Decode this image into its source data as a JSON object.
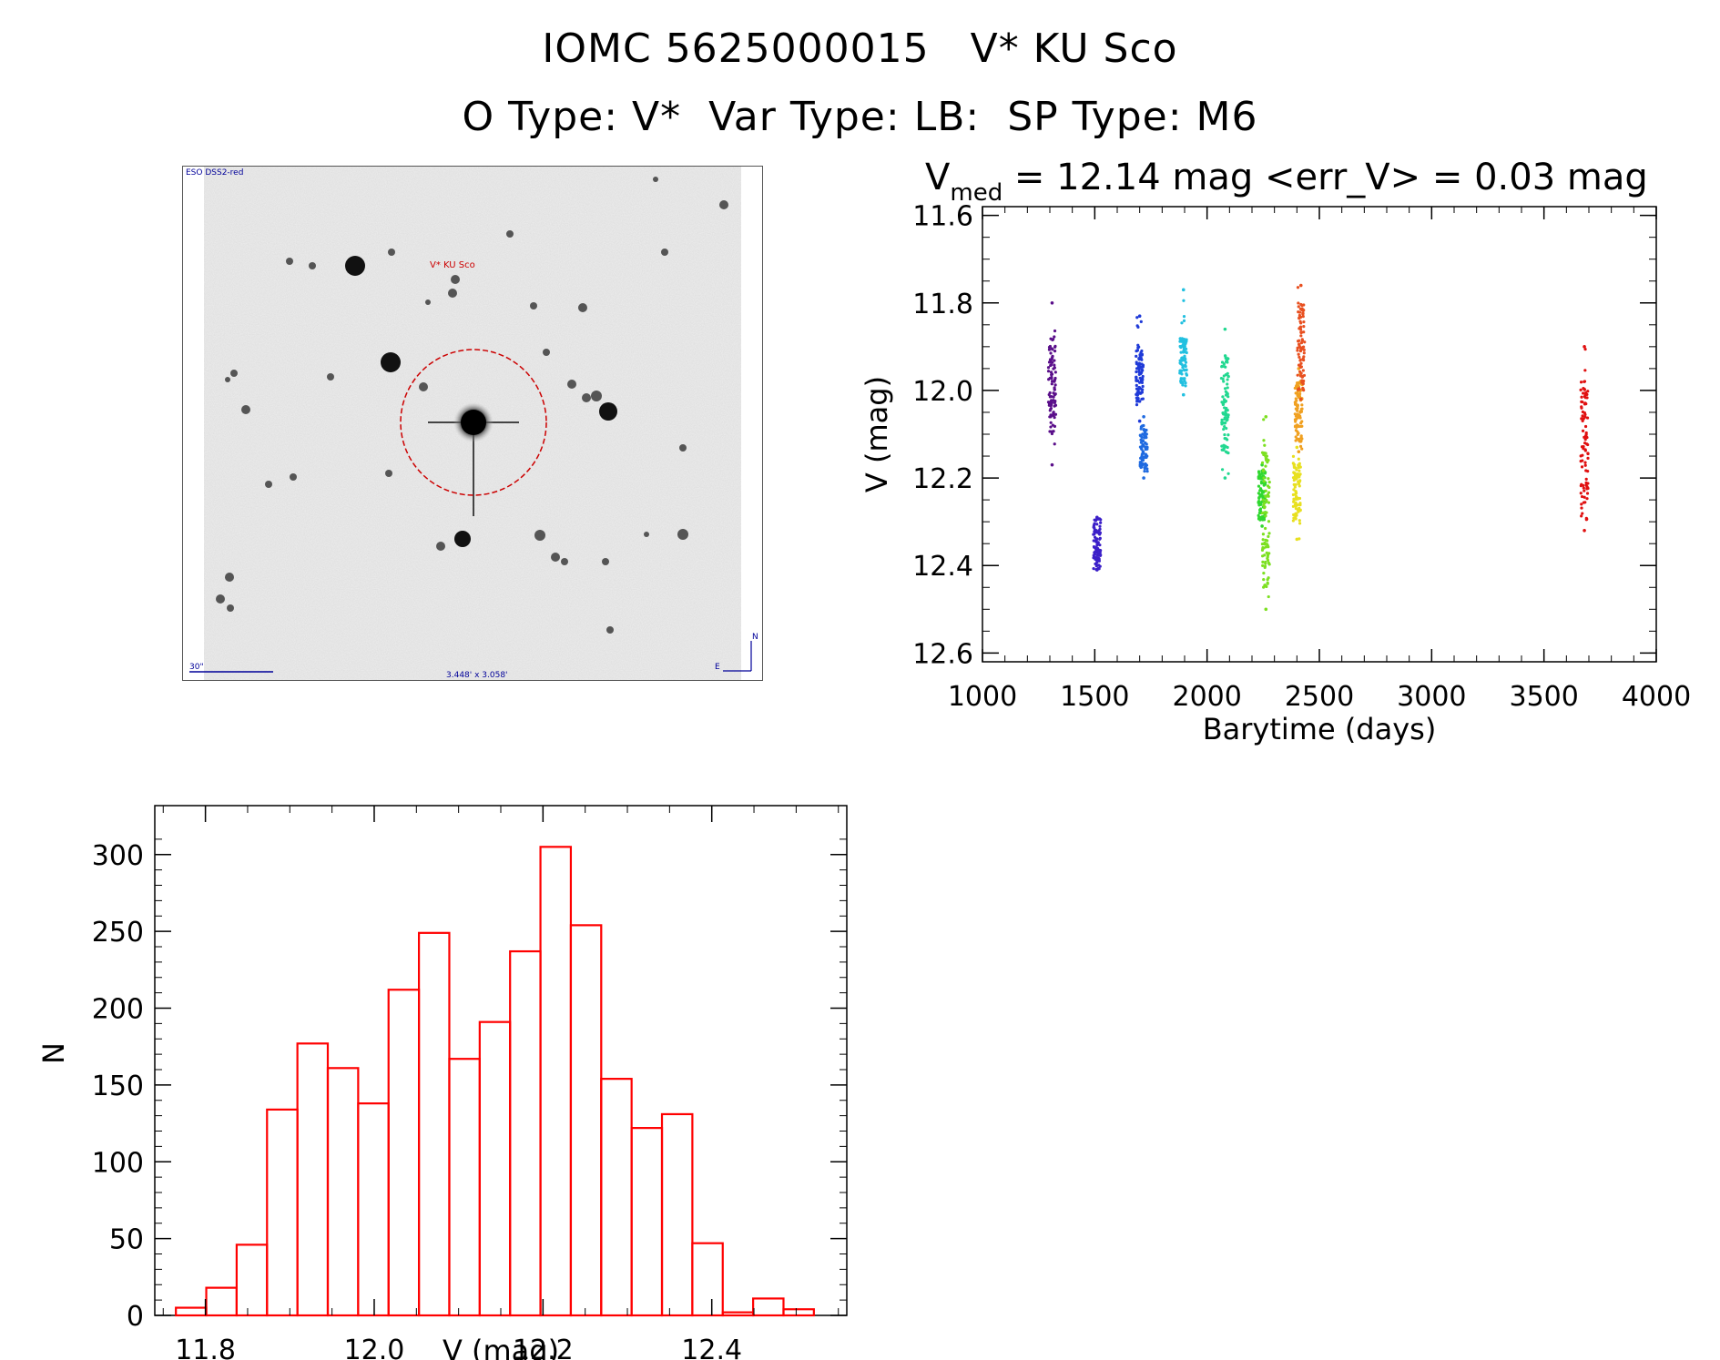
{
  "header": {
    "title_line1": "IOMC 5625000015   V* KU Sco",
    "title_line2": "O Type: V*  Var Type: LB:  SP Type: M6"
  },
  "image_panel": {
    "survey_label": "ESO DSS2-red",
    "target_label": "V* KU Sco",
    "scale_label": "30\"",
    "fov_label": "3.448' x 3.058'",
    "north_label": "N",
    "east_label": "E",
    "circle_color": "#cc0000",
    "label_color": "#000099"
  },
  "chart_data": [
    {
      "type": "scatter",
      "title_prefix": "V",
      "title_subscript": "med",
      "title_rest": " = 12.14 mag <err_V> = 0.03 mag",
      "xlabel": "Barytime (days)",
      "ylabel": "V (mag)",
      "xlim": [
        1000,
        4000
      ],
      "ylim": [
        12.62,
        11.58
      ],
      "y_inverted": true,
      "xticks": [
        1000,
        1500,
        2000,
        2500,
        3000,
        3500,
        4000
      ],
      "yticks": [
        11.6,
        11.8,
        12.0,
        12.2,
        12.4,
        12.6
      ],
      "segments": [
        {
          "x": 1310,
          "ymin": 11.8,
          "ymax": 12.17,
          "dense_min": 11.88,
          "dense_max": 12.1,
          "color": "#5a0f8a"
        },
        {
          "x": 1510,
          "ymin": 12.29,
          "ymax": 12.41,
          "dense_min": 12.29,
          "dense_max": 12.41,
          "color": "#3b1fc8"
        },
        {
          "x": 1700,
          "ymin": 11.83,
          "ymax": 12.07,
          "dense_min": 11.9,
          "dense_max": 12.03,
          "color": "#1f3ad8"
        },
        {
          "x": 1718,
          "ymin": 12.06,
          "ymax": 12.2,
          "dense_min": 12.08,
          "dense_max": 12.18,
          "color": "#1f6ae0"
        },
        {
          "x": 1895,
          "ymin": 11.77,
          "ymax": 12.01,
          "dense_min": 11.88,
          "dense_max": 11.99,
          "color": "#22c0e0"
        },
        {
          "x": 2080,
          "ymin": 11.86,
          "ymax": 12.2,
          "dense_min": 11.92,
          "dense_max": 12.15,
          "color": "#22d890"
        },
        {
          "x": 2245,
          "ymin": 12.17,
          "ymax": 12.31,
          "dense_min": 12.18,
          "dense_max": 12.3,
          "color": "#30d830"
        },
        {
          "x": 2262,
          "ymin": 12.06,
          "ymax": 12.5,
          "dense_min": 12.12,
          "dense_max": 12.45,
          "color": "#7ce020"
        },
        {
          "x": 2400,
          "ymin": 12.13,
          "ymax": 12.34,
          "dense_min": 12.15,
          "dense_max": 12.3,
          "color": "#e8e020"
        },
        {
          "x": 2408,
          "ymin": 11.95,
          "ymax": 12.14,
          "dense_min": 11.98,
          "dense_max": 12.12,
          "color": "#f0a020"
        },
        {
          "x": 2418,
          "ymin": 11.76,
          "ymax": 12.02,
          "dense_min": 11.8,
          "dense_max": 12.0,
          "color": "#e85020"
        },
        {
          "x": 3680,
          "ymin": 11.9,
          "ymax": 12.32,
          "dense_min": 11.98,
          "dense_max": 12.3,
          "color": "#e01010"
        }
      ]
    },
    {
      "type": "bar",
      "xlabel": "V (mag)",
      "ylabel": "N",
      "xlim": [
        11.74,
        12.56
      ],
      "ylim": [
        0,
        320
      ],
      "xticks": [
        11.8,
        12.0,
        12.2,
        12.4
      ],
      "yticks": [
        0,
        50,
        100,
        150,
        200,
        250,
        300
      ],
      "bin_width": 0.036,
      "bin_start": 11.765,
      "values": [
        5,
        18,
        46,
        134,
        177,
        161,
        138,
        212,
        249,
        167,
        191,
        237,
        305,
        254,
        154,
        122,
        131,
        47,
        2,
        11,
        4
      ],
      "color": "#ff0000"
    }
  ]
}
